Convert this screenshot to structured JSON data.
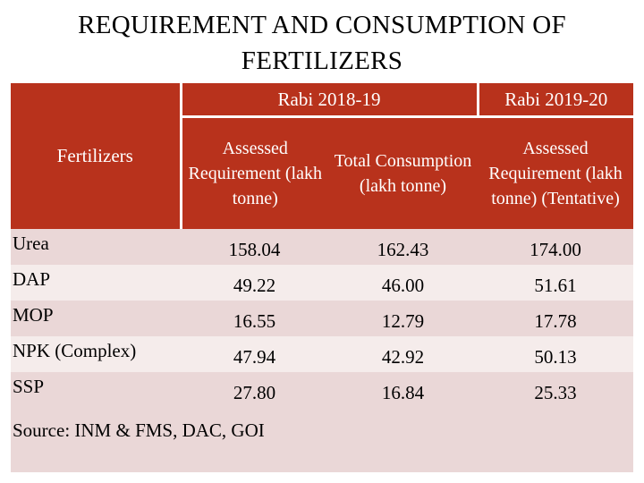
{
  "title": {
    "line1": "REQUIREMENT AND  CONSUMPTION  OF",
    "line2": "FERTILIZERS"
  },
  "table": {
    "row_header": "Fertilizers",
    "group1": "Rabi 2018-19",
    "group2": "Rabi 2019-20",
    "col1": "Assessed Requirement (lakh tonne)",
    "col2": "Total Consumption (lakh tonne)",
    "col3": "Assessed Requirement (lakh tonne) (Tentative)",
    "rows": [
      {
        "name": "Urea",
        "v1": "158.04",
        "v2": "162.43",
        "v3": "174.00"
      },
      {
        "name": "DAP",
        "v1": "49.22",
        "v2": "46.00",
        "v3": "51.61"
      },
      {
        "name": "MOP",
        "v1": "16.55",
        "v2": "12.79",
        "v3": "17.78"
      },
      {
        "name": "NPK (Complex)",
        "v1": "47.94",
        "v2": "42.92",
        "v3": "50.13"
      },
      {
        "name": "SSP",
        "v1": "27.80",
        "v2": "16.84",
        "v3": "25.33"
      }
    ]
  },
  "source": "Source: INM & FMS, DAC, GOI",
  "colors": {
    "header_bg": "#b8321c",
    "row_dark": "#ead7d7",
    "row_light": "#f5eceb"
  }
}
